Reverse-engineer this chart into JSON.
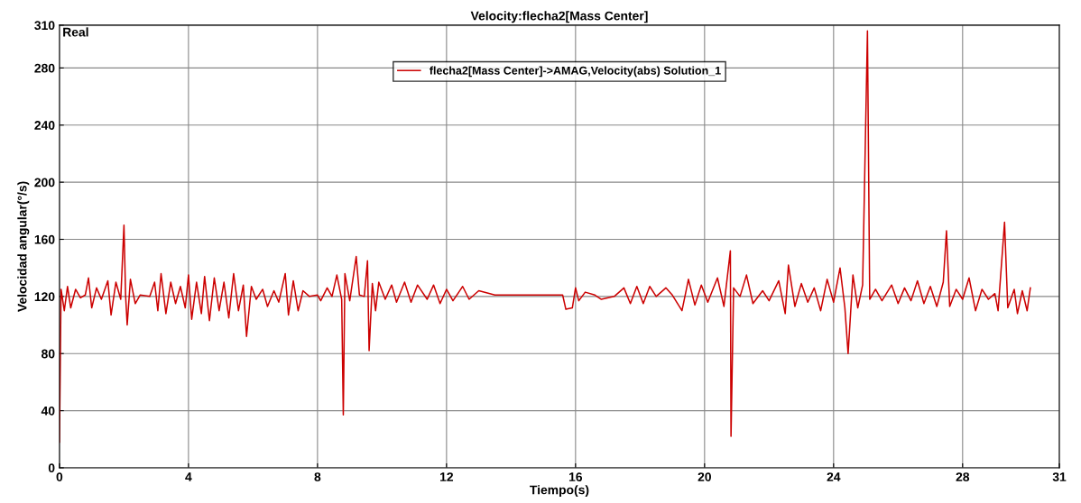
{
  "chart_data": {
    "type": "line",
    "title": "Velocity:flecha2[Mass Center]",
    "xlabel": "Tiempo(s)",
    "ylabel": "Velocidad angular(°/s)",
    "annotations": [
      "Real"
    ],
    "xlim": [
      0,
      31
    ],
    "xticks": [
      0,
      4,
      8,
      12,
      16,
      20,
      24,
      28,
      31
    ],
    "ylim": [
      0,
      310
    ],
    "yticks": [
      0,
      40,
      80,
      120,
      160,
      200,
      240,
      280,
      310
    ],
    "grid": true,
    "legend": "top",
    "line_style": "solid",
    "series": [
      {
        "name": "flecha2[Mass Center]->AMAG,Velocity(abs) Solution_1",
        "color": "#cc0000",
        "x": [
          0,
          0.05,
          0.15,
          0.25,
          0.35,
          0.5,
          0.65,
          0.8,
          0.9,
          1.0,
          1.15,
          1.3,
          1.5,
          1.6,
          1.75,
          1.9,
          2.0,
          2.05,
          2.1,
          2.2,
          2.35,
          2.5,
          2.8,
          2.95,
          3.05,
          3.15,
          3.3,
          3.45,
          3.6,
          3.75,
          3.9,
          4.0,
          4.1,
          4.25,
          4.4,
          4.5,
          4.65,
          4.8,
          4.95,
          5.1,
          5.25,
          5.4,
          5.55,
          5.7,
          5.8,
          5.95,
          6.1,
          6.3,
          6.45,
          6.65,
          6.8,
          7.0,
          7.1,
          7.25,
          7.4,
          7.55,
          7.75,
          8.0,
          8.1,
          8.3,
          8.45,
          8.6,
          8.75,
          8.8,
          8.85,
          9.0,
          9.2,
          9.3,
          9.45,
          9.55,
          9.6,
          9.7,
          9.8,
          9.9,
          10.1,
          10.3,
          10.45,
          10.7,
          10.9,
          11.1,
          11.4,
          11.6,
          11.8,
          12.0,
          12.2,
          12.5,
          12.7,
          13.0,
          13.5,
          14.0,
          15.6,
          15.7,
          15.9,
          16.0,
          16.1,
          16.3,
          16.6,
          16.8,
          17.2,
          17.5,
          17.7,
          17.9,
          18.1,
          18.3,
          18.5,
          18.8,
          19.0,
          19.3,
          19.5,
          19.7,
          19.9,
          20.1,
          20.4,
          20.6,
          20.8,
          20.82,
          20.9,
          21.1,
          21.3,
          21.5,
          21.8,
          22.0,
          22.3,
          22.5,
          22.6,
          22.8,
          23.0,
          23.2,
          23.4,
          23.6,
          23.8,
          24.0,
          24.2,
          24.35,
          24.45,
          24.6,
          24.75,
          24.9,
          25.05,
          25.12,
          25.3,
          25.5,
          25.8,
          26.0,
          26.2,
          26.4,
          26.6,
          26.8,
          27.0,
          27.2,
          27.4,
          27.5,
          27.6,
          27.8,
          28.0,
          28.2,
          28.4,
          28.6,
          28.8,
          29.0,
          29.1,
          29.3,
          29.4,
          29.6,
          29.7,
          29.85,
          30.0,
          30.1
        ],
        "values": [
          18,
          125,
          110,
          127,
          112,
          125,
          119,
          121,
          133,
          112,
          126,
          118,
          131,
          107,
          130,
          118,
          170,
          121,
          100,
          132,
          115,
          121,
          120,
          130,
          110,
          136,
          108,
          130,
          115,
          127,
          112,
          135,
          104,
          130,
          108,
          134,
          103,
          133,
          110,
          130,
          105,
          136,
          110,
          128,
          92,
          127,
          118,
          125,
          113,
          124,
          116,
          136,
          107,
          131,
          110,
          124,
          120,
          121,
          117,
          126,
          120,
          135,
          118,
          37,
          136,
          117,
          148,
          121,
          120,
          145,
          82,
          129,
          110,
          130,
          118,
          128,
          116,
          130,
          116,
          128,
          118,
          128,
          115,
          125,
          117,
          127,
          118,
          124,
          121,
          121,
          121,
          111,
          112,
          126,
          117,
          123,
          121,
          118,
          120,
          126,
          115,
          127,
          115,
          127,
          120,
          126,
          121,
          110,
          132,
          114,
          128,
          116,
          133,
          113,
          152,
          22,
          126,
          120,
          135,
          115,
          124,
          117,
          131,
          108,
          142,
          113,
          129,
          116,
          126,
          110,
          132,
          116,
          140,
          112,
          80,
          135,
          112,
          128,
          306,
          118,
          125,
          117,
          128,
          115,
          126,
          117,
          131,
          115,
          127,
          113,
          130,
          166,
          113,
          125,
          118,
          133,
          110,
          125,
          118,
          122,
          110,
          172,
          112,
          125,
          108,
          124,
          110,
          126
        ]
      }
    ]
  }
}
